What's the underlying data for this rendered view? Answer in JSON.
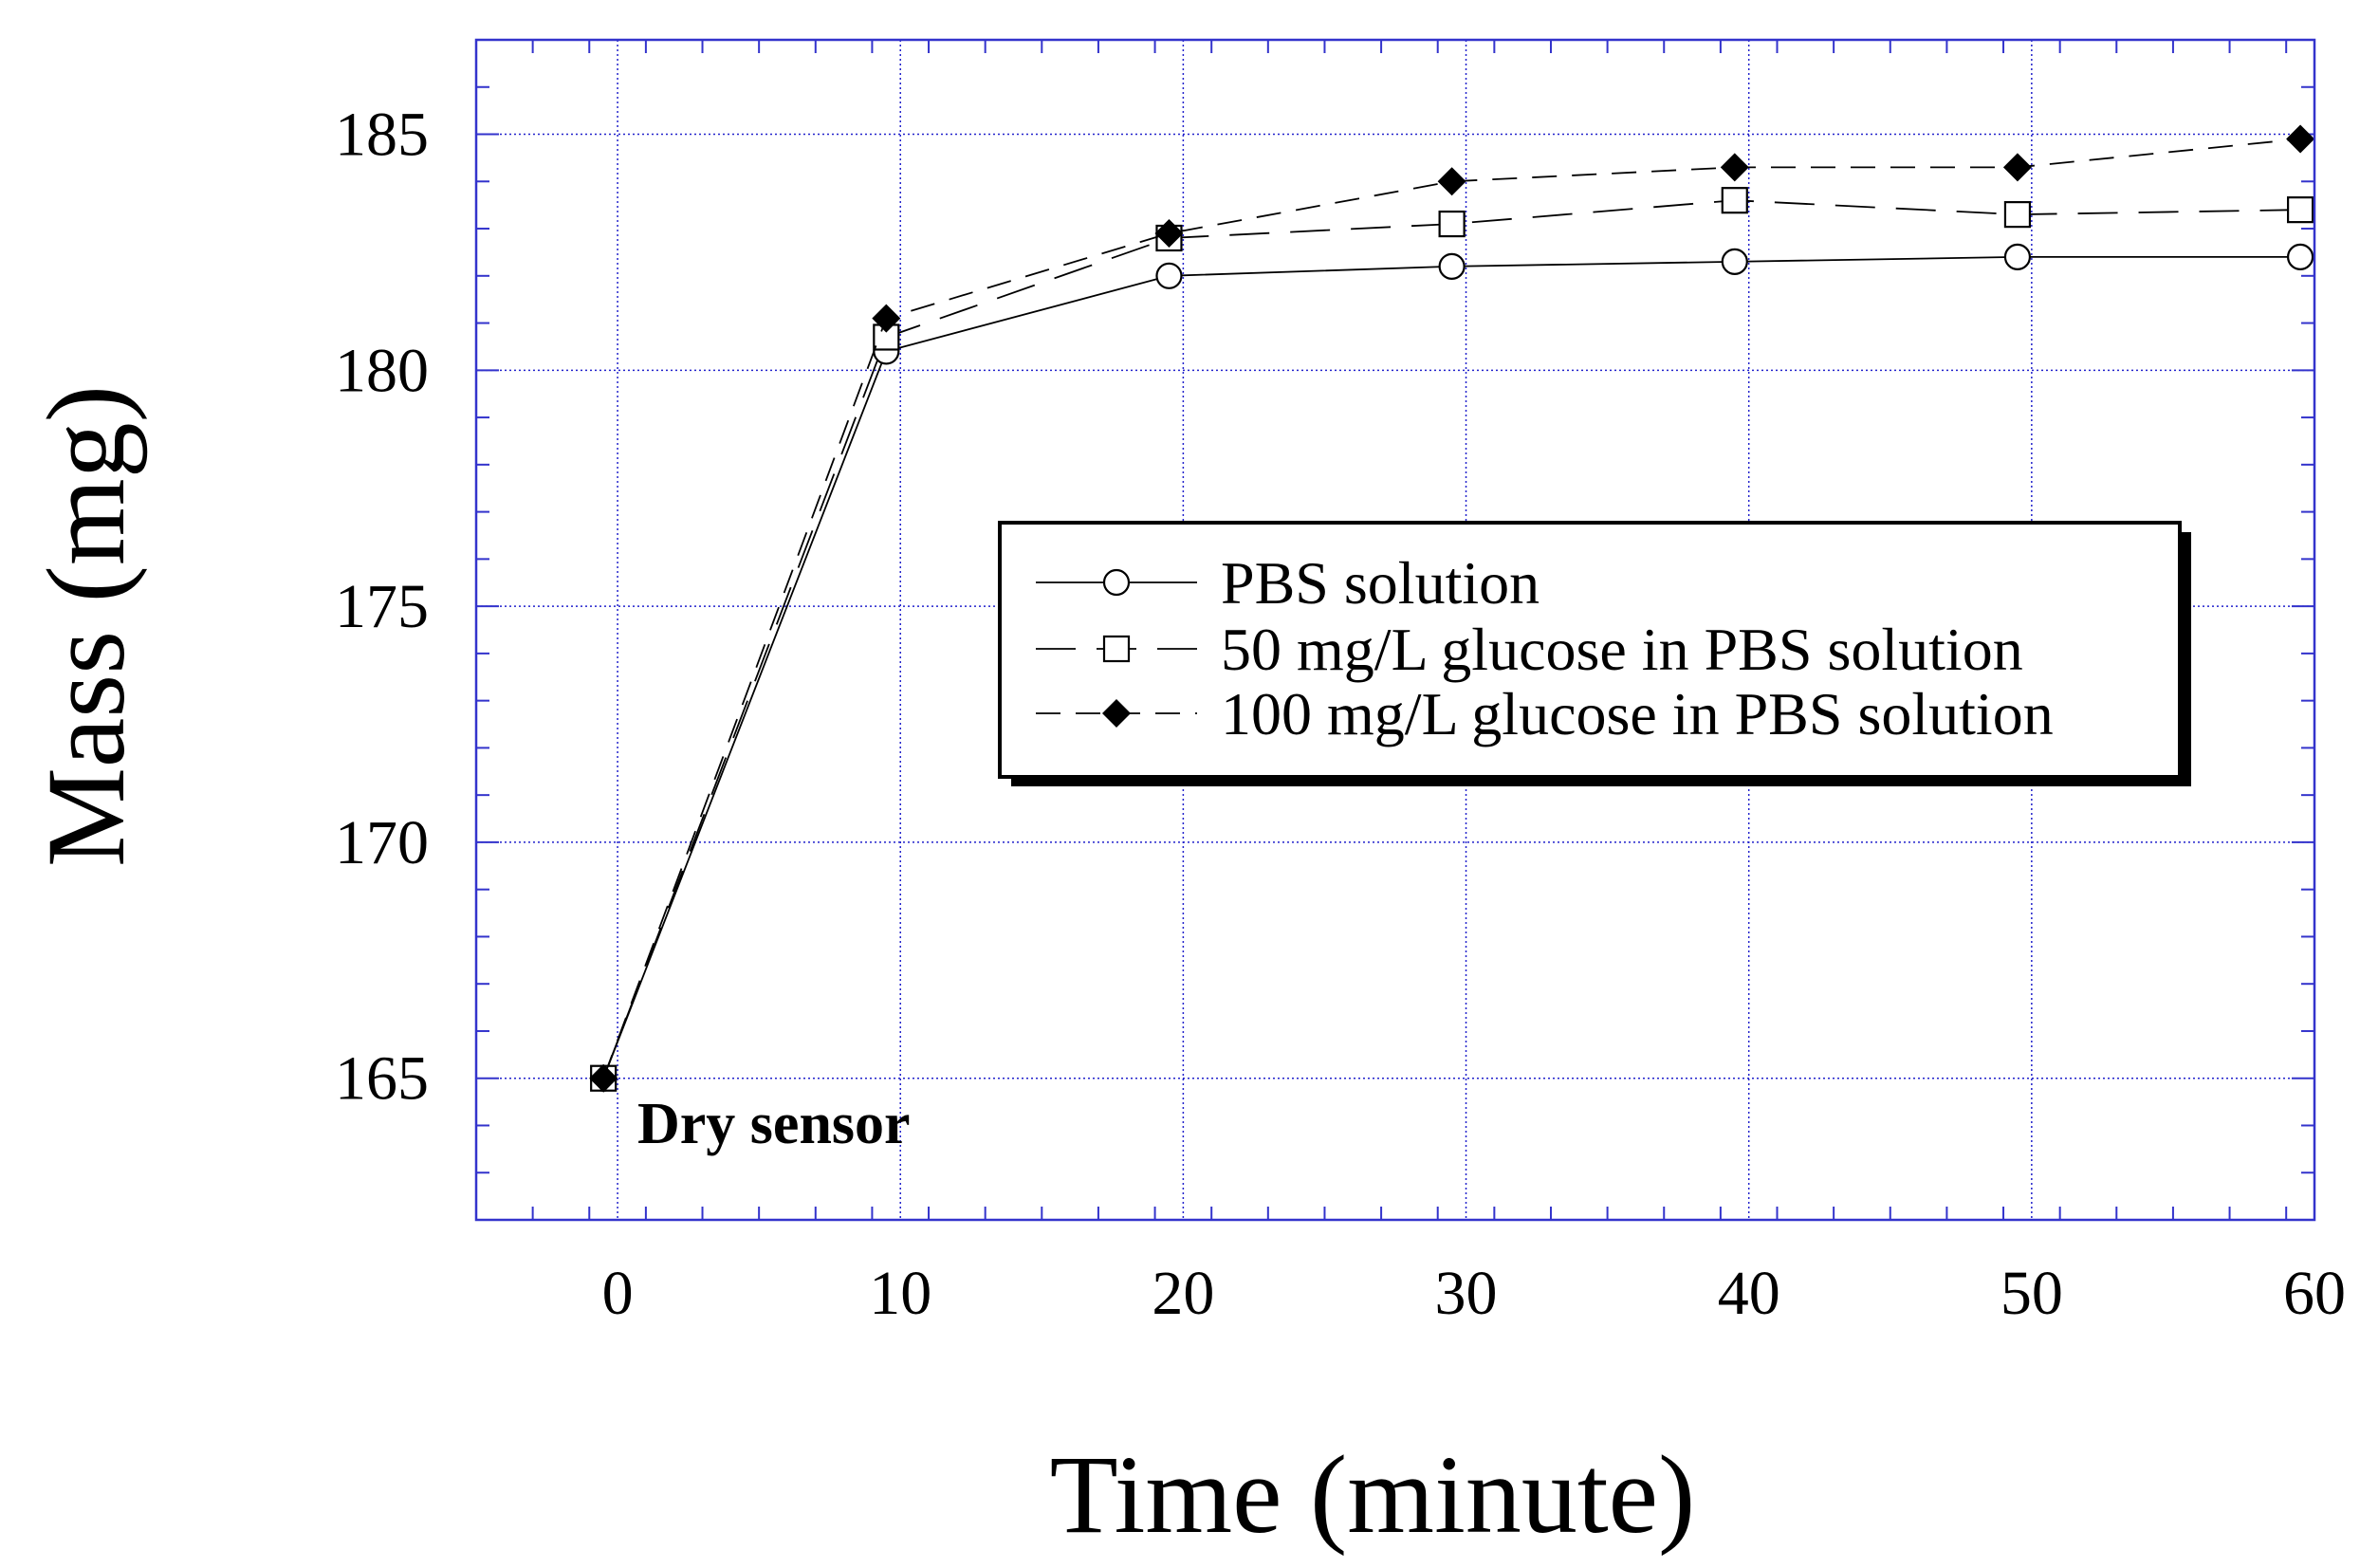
{
  "chart_data": {
    "type": "line",
    "title": "",
    "xlabel": "Time (minute)",
    "ylabel": "Mass (mg)",
    "xlim": [
      -5,
      60
    ],
    "ylim": [
      162,
      187
    ],
    "xticks": [
      0,
      10,
      20,
      30,
      40,
      50,
      60
    ],
    "yticks": [
      165,
      170,
      175,
      180,
      185
    ],
    "grid": true,
    "legend_position": "center-right",
    "series": [
      {
        "name": "PBS solution",
        "marker": "open-circle",
        "line": "solid",
        "x": [
          -0.5,
          9.5,
          19.5,
          29.5,
          39.5,
          49.5,
          59.5
        ],
        "y": [
          165.0,
          180.4,
          182.0,
          182.2,
          182.3,
          182.4,
          182.4
        ]
      },
      {
        "name": "50 mg/L glucose in PBS solution",
        "marker": "open-square",
        "line": "long-dash",
        "x": [
          -0.5,
          9.5,
          19.5,
          29.5,
          39.5,
          49.5,
          59.5
        ],
        "y": [
          165.0,
          180.7,
          182.8,
          183.1,
          183.6,
          183.3,
          183.4
        ]
      },
      {
        "name": "100 mg/L glucose in PBS solution",
        "marker": "filled-diamond",
        "line": "dash",
        "x": [
          -0.5,
          9.5,
          19.5,
          29.5,
          39.5,
          49.5,
          59.5
        ],
        "y": [
          165.0,
          181.1,
          182.9,
          184.0,
          184.3,
          184.3,
          184.9
        ]
      }
    ],
    "annotations": [
      {
        "text": "Dry sensor"
      }
    ]
  },
  "colors": {
    "grid": "#2222cc",
    "frame": "#3333cc",
    "ink": "#000000"
  }
}
